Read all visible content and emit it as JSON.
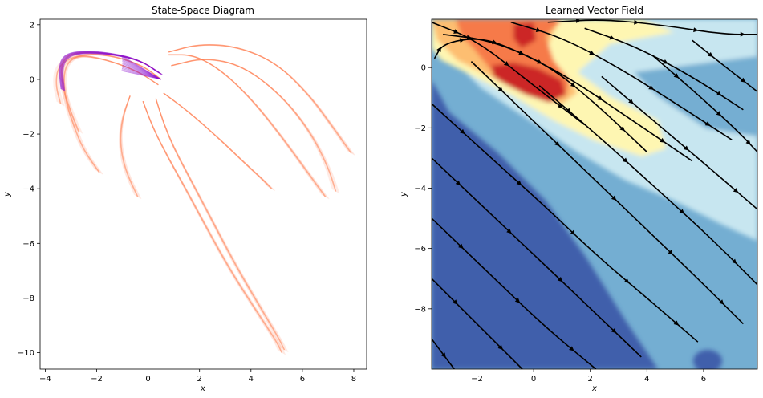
{
  "colors": {
    "trajectory": "#ff7f50",
    "trajectory_highlight": "#8b0fcf",
    "streamline": "#000000",
    "contour_levels": [
      "#3f5fab",
      "#74aed2",
      "#c7e6f0",
      "#fef6b2",
      "#fdbe71",
      "#f67a49",
      "#cc2526"
    ]
  },
  "chart_data": [
    {
      "type": "line",
      "title": "State-Space Diagram",
      "xlabel": "x",
      "ylabel": "y",
      "xlim": [
        -4.2,
        8.5
      ],
      "ylim": [
        -10.6,
        2.2
      ],
      "x_ticks": [
        -4,
        -2,
        0,
        2,
        4,
        6,
        8
      ],
      "y_ticks": [
        2,
        0,
        -2,
        -4,
        -6,
        -8,
        -10
      ],
      "grid": false,
      "series": [
        {
          "x": [
            0.5,
            -0.3,
            -1.5,
            -2.6,
            -3.2,
            -3.4,
            -3.3,
            -3.0,
            -2.7
          ],
          "y": [
            0.2,
            0.7,
            0.95,
            1.0,
            0.85,
            0.4,
            -0.4,
            -1.2,
            -1.9
          ]
        },
        {
          "x": [
            0.5,
            -0.2,
            -1.3,
            -2.4,
            -3.1,
            -3.3,
            -3.2,
            -2.9,
            -2.5,
            -1.9
          ],
          "y": [
            0.0,
            0.5,
            0.85,
            0.95,
            0.7,
            0.1,
            -0.8,
            -1.7,
            -2.6,
            -3.4
          ]
        },
        {
          "x": [
            0.4,
            -0.4,
            -1.7,
            -2.8,
            -3.5,
            -3.6,
            -3.4
          ],
          "y": [
            -0.2,
            0.3,
            0.75,
            0.9,
            0.5,
            -0.2,
            -0.9
          ]
        },
        {
          "x": [
            0.8,
            2.0,
            3.5,
            5.0,
            6.3,
            7.3,
            7.9
          ],
          "y": [
            1.0,
            1.3,
            1.2,
            0.6,
            -0.6,
            -1.9,
            -2.7
          ]
        },
        {
          "x": [
            0.9,
            2.2,
            3.7,
            5.2,
            6.3,
            7.0,
            7.3
          ],
          "y": [
            0.5,
            0.8,
            0.5,
            -0.6,
            -1.9,
            -3.2,
            -4.1
          ]
        },
        {
          "x": [
            0.6,
            1.6,
            2.8,
            3.8,
            4.5,
            4.8
          ],
          "y": [
            -0.5,
            -1.2,
            -2.2,
            -3.1,
            -3.7,
            -4.0
          ]
        },
        {
          "x": [
            0.8,
            1.8,
            2.9,
            4.1,
            5.2,
            6.2,
            6.9
          ],
          "y": [
            0.9,
            0.9,
            0.3,
            -0.8,
            -2.1,
            -3.4,
            -4.3
          ]
        },
        {
          "x": [
            0.3,
            0.6,
            1.0,
            1.5,
            2.4,
            3.4,
            4.4,
            5.1,
            5.3
          ],
          "y": [
            -0.7,
            -1.6,
            -2.5,
            -3.4,
            -5.0,
            -6.8,
            -8.4,
            -9.5,
            -9.9
          ]
        },
        {
          "x": [
            -0.2,
            0.2,
            0.8,
            1.4,
            2.2,
            3.2,
            4.3,
            5.0,
            5.2
          ],
          "y": [
            -0.8,
            -1.8,
            -2.9,
            -3.9,
            -5.3,
            -7.0,
            -8.6,
            -9.6,
            -10.0
          ]
        },
        {
          "x": [
            -0.7,
            -1.0,
            -1.1,
            -0.9,
            -0.4
          ],
          "y": [
            -0.6,
            -1.4,
            -2.3,
            -3.3,
            -4.3
          ]
        }
      ]
    },
    {
      "type": "heatmap",
      "title": "Learned Vector Field",
      "xlabel": "x",
      "ylabel": "y",
      "xlim": [
        -3.6,
        7.9
      ],
      "ylim": [
        -10.0,
        1.6
      ],
      "x_ticks": [
        -2,
        0,
        2,
        4,
        6
      ],
      "y_ticks": [
        0,
        -2,
        -4,
        -6,
        -8
      ],
      "grid": false,
      "streamlines": [
        {
          "x": [
            -3.6,
            -2.0,
            0.0,
            1.8
          ],
          "y": [
            1.5,
            0.9,
            -0.6,
            -1.9
          ]
        },
        {
          "x": [
            -3.2,
            -1.5,
            0.5,
            2.2,
            4.0
          ],
          "y": [
            1.1,
            0.9,
            0.1,
            -1.2,
            -2.8
          ]
        },
        {
          "x": [
            -3.5,
            -3.2,
            -2.0,
            -0.9,
            1.2,
            3.4,
            5.6
          ],
          "y": [
            0.3,
            0.8,
            1.0,
            0.7,
            -0.3,
            -1.7,
            -3.1
          ]
        },
        {
          "x": [
            -0.8,
            1.0,
            3.0,
            5.2,
            7.0
          ],
          "y": [
            1.5,
            1.0,
            0.0,
            -1.3,
            -2.4
          ]
        },
        {
          "x": [
            1.8,
            3.6,
            5.6,
            7.4
          ],
          "y": [
            1.3,
            0.7,
            -0.3,
            -1.4
          ]
        },
        {
          "x": [
            0.5,
            2.5,
            4.6,
            6.7,
            7.9
          ],
          "y": [
            1.5,
            1.6,
            1.4,
            1.1,
            1.1
          ]
        },
        {
          "x": [
            -3.6,
            -1.5,
            0.4,
            2.3,
            4.2,
            5.8
          ],
          "y": [
            -1.2,
            -3.0,
            -4.6,
            -6.3,
            -7.8,
            -9.1
          ]
        },
        {
          "x": [
            -3.6,
            -1.8,
            0.0,
            1.8,
            3.8
          ],
          "y": [
            -3.0,
            -4.6,
            -6.2,
            -7.8,
            -9.6
          ]
        },
        {
          "x": [
            -3.6,
            -1.6,
            0.4,
            2.2
          ],
          "y": [
            -5.0,
            -6.8,
            -8.6,
            -10.0
          ]
        },
        {
          "x": [
            -3.6,
            -2.0,
            -0.4
          ],
          "y": [
            -7.0,
            -8.5,
            -10.0
          ]
        },
        {
          "x": [
            -3.6,
            -2.8
          ],
          "y": [
            -9.0,
            -10.0
          ]
        },
        {
          "x": [
            -2.2,
            -0.2,
            1.8,
            3.8,
            5.8,
            7.4
          ],
          "y": [
            0.2,
            -1.6,
            -3.4,
            -5.2,
            -7.0,
            -8.5
          ]
        },
        {
          "x": [
            0.2,
            2.2,
            4.2,
            6.2,
            7.9
          ],
          "y": [
            -0.6,
            -2.2,
            -3.9,
            -5.6,
            -7.2
          ]
        },
        {
          "x": [
            2.4,
            4.4,
            6.3,
            7.9
          ],
          "y": [
            -0.3,
            -1.9,
            -3.4,
            -4.7
          ]
        },
        {
          "x": [
            4.2,
            5.8,
            7.2,
            7.9
          ],
          "y": [
            0.4,
            -0.9,
            -2.1,
            -2.8
          ]
        },
        {
          "x": [
            5.6,
            6.8,
            7.9
          ],
          "y": [
            0.9,
            0.0,
            -0.8
          ]
        }
      ]
    }
  ]
}
